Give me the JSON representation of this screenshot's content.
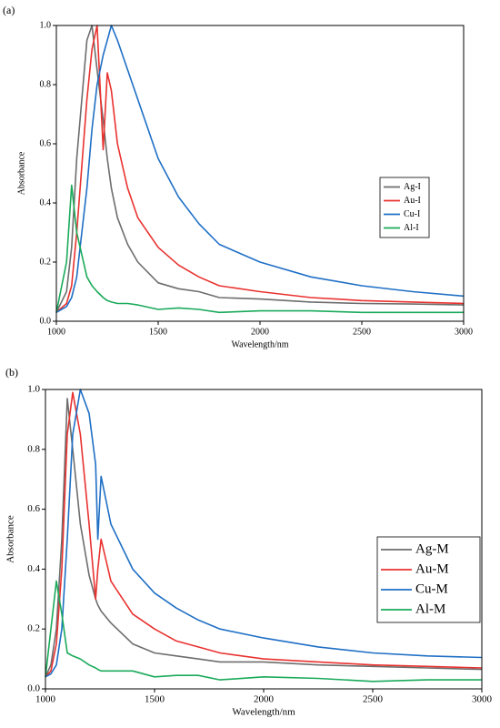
{
  "chart_data": [
    {
      "type": "line",
      "label": "(a)",
      "x_label": "Wavelength/nm",
      "y_label": "Absorbance",
      "x": [
        1000,
        1050,
        1075,
        1100,
        1150,
        1175,
        1200,
        1230,
        1250,
        1270,
        1300,
        1350,
        1400,
        1500,
        1600,
        1700,
        1800,
        2000,
        2250,
        2500,
        2750,
        3000
      ],
      "series": [
        {
          "name": "Ag-I",
          "color": "#6d6d6d",
          "values": [
            0.03,
            0.1,
            0.25,
            0.55,
            0.95,
            1.0,
            0.85,
            0.68,
            0.55,
            0.45,
            0.35,
            0.26,
            0.2,
            0.13,
            0.11,
            0.1,
            0.08,
            0.075,
            0.065,
            0.06,
            0.058,
            0.055
          ]
        },
        {
          "name": "Au-I",
          "color": "#e8322f",
          "values": [
            0.03,
            0.06,
            0.12,
            0.3,
            0.75,
            0.92,
            1.0,
            0.58,
            0.84,
            0.78,
            0.6,
            0.45,
            0.35,
            0.25,
            0.19,
            0.15,
            0.12,
            0.1,
            0.08,
            0.07,
            0.065,
            0.06
          ]
        },
        {
          "name": "Cu-I",
          "color": "#1f6fc5",
          "values": [
            0.03,
            0.05,
            0.08,
            0.15,
            0.45,
            0.65,
            0.8,
            0.9,
            0.95,
            1.0,
            0.95,
            0.85,
            0.75,
            0.55,
            0.42,
            0.33,
            0.26,
            0.2,
            0.15,
            0.12,
            0.1,
            0.085
          ]
        },
        {
          "name": "Al-I",
          "color": "#1aaa5a",
          "values": [
            0.03,
            0.2,
            0.46,
            0.3,
            0.15,
            0.12,
            0.1,
            0.08,
            0.07,
            0.065,
            0.06,
            0.06,
            0.055,
            0.04,
            0.045,
            0.04,
            0.03,
            0.035,
            0.035,
            0.03,
            0.03,
            0.03
          ]
        }
      ],
      "xlim": [
        1000,
        3000
      ],
      "xticks": [
        1000,
        1500,
        2000,
        2500,
        3000
      ],
      "ylim": [
        0,
        1
      ],
      "yticks": [
        {
          "value": 0,
          "label": "0.0"
        },
        0.2,
        0.4,
        0.6,
        0.8,
        {
          "value": 1,
          "label": "1.0"
        }
      ],
      "legend": "right"
    },
    {
      "type": "line",
      "label": "(b)",
      "x_label": "Wavelength/nm",
      "y_label": "Absorbance",
      "x": [
        1000,
        1025,
        1050,
        1075,
        1100,
        1125,
        1160,
        1200,
        1230,
        1240,
        1255,
        1300,
        1400,
        1500,
        1600,
        1700,
        1800,
        2000,
        2250,
        2500,
        2750,
        3000
      ],
      "series": [
        {
          "name": "Ag-M",
          "color": "#6d6d6d",
          "values": [
            0.04,
            0.08,
            0.2,
            0.5,
            0.97,
            0.8,
            0.55,
            0.38,
            0.3,
            0.28,
            0.26,
            0.22,
            0.15,
            0.12,
            0.11,
            0.1,
            0.09,
            0.09,
            0.08,
            0.075,
            0.07,
            0.065
          ]
        },
        {
          "name": "Au-M",
          "color": "#e8322f",
          "values": [
            0.04,
            0.06,
            0.15,
            0.4,
            0.85,
            0.99,
            0.85,
            0.55,
            0.3,
            0.4,
            0.5,
            0.36,
            0.25,
            0.2,
            0.16,
            0.14,
            0.12,
            0.1,
            0.09,
            0.08,
            0.075,
            0.07
          ]
        },
        {
          "name": "Cu-M",
          "color": "#1f6fc5",
          "values": [
            0.04,
            0.05,
            0.08,
            0.2,
            0.5,
            0.85,
            1.0,
            0.92,
            0.75,
            0.5,
            0.71,
            0.55,
            0.4,
            0.32,
            0.27,
            0.23,
            0.2,
            0.17,
            0.14,
            0.12,
            0.11,
            0.105
          ]
        },
        {
          "name": "Al-M",
          "color": "#1aaa5a",
          "values": [
            0.04,
            0.2,
            0.36,
            0.25,
            0.12,
            0.11,
            0.1,
            0.08,
            0.07,
            0.065,
            0.06,
            0.06,
            0.06,
            0.04,
            0.045,
            0.045,
            0.03,
            0.04,
            0.035,
            0.025,
            0.03,
            0.03
          ]
        }
      ],
      "xlim": [
        1000,
        3000
      ],
      "xticks": [
        1000,
        1500,
        2000,
        2500,
        3000
      ],
      "ylim": [
        0,
        1
      ],
      "yticks": [
        {
          "value": 0,
          "label": "0.0"
        },
        0.2,
        0.4,
        0.6,
        0.8,
        {
          "value": 1,
          "label": "1.0"
        }
      ],
      "legend": "right"
    }
  ]
}
